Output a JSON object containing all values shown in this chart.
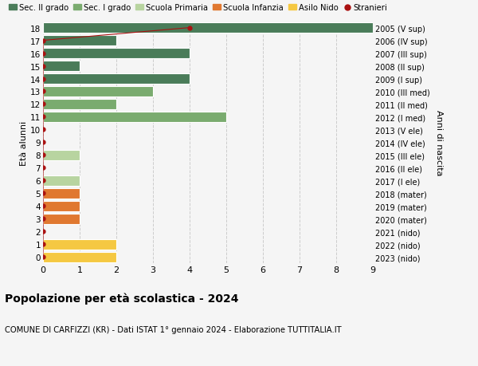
{
  "ages": [
    18,
    17,
    16,
    15,
    14,
    13,
    12,
    11,
    10,
    9,
    8,
    7,
    6,
    5,
    4,
    3,
    2,
    1,
    0
  ],
  "years": [
    "2005 (V sup)",
    "2006 (IV sup)",
    "2007 (III sup)",
    "2008 (II sup)",
    "2009 (I sup)",
    "2010 (III med)",
    "2011 (II med)",
    "2012 (I med)",
    "2013 (V ele)",
    "2014 (IV ele)",
    "2015 (III ele)",
    "2016 (II ele)",
    "2017 (I ele)",
    "2018 (mater)",
    "2019 (mater)",
    "2020 (mater)",
    "2021 (nido)",
    "2022 (nido)",
    "2023 (nido)"
  ],
  "values": [
    9,
    2,
    4,
    1,
    4,
    3,
    2,
    5,
    0,
    0,
    1,
    0,
    1,
    1,
    1,
    1,
    0,
    2,
    2
  ],
  "stranieri_x": [
    4,
    0,
    0,
    0,
    0,
    0,
    0,
    0,
    0,
    0,
    0,
    0,
    0,
    0,
    0,
    0,
    0,
    0,
    0
  ],
  "bar_colors": [
    "#4a7c59",
    "#4a7c59",
    "#4a7c59",
    "#4a7c59",
    "#4a7c59",
    "#7aab6f",
    "#7aab6f",
    "#7aab6f",
    "#b8d4a0",
    "#b8d4a0",
    "#b8d4a0",
    "#b8d4a0",
    "#b8d4a0",
    "#e07830",
    "#e07830",
    "#e07830",
    "#f5c842",
    "#f5c842",
    "#f5c842"
  ],
  "title": "Popolazione per età scolastica - 2024",
  "subtitle": "COMUNE DI CARFIZZI (KR) - Dati ISTAT 1° gennaio 2024 - Elaborazione TUTTITALIA.IT",
  "ylabel": "Età alunni",
  "right_ylabel": "Anni di nascita",
  "xlim": [
    0,
    9
  ],
  "color_sec2": "#4a7c59",
  "color_sec1": "#7aab6f",
  "color_prim": "#b8d4a0",
  "color_infanzia": "#e07830",
  "color_nido": "#f5c842",
  "color_stranieri": "#aa1111",
  "legend_labels": [
    "Sec. II grado",
    "Sec. I grado",
    "Scuola Primaria",
    "Scuola Infanzia",
    "Asilo Nido",
    "Stranieri"
  ],
  "bg_color": "#f5f5f5",
  "grid_color": "#cccccc"
}
